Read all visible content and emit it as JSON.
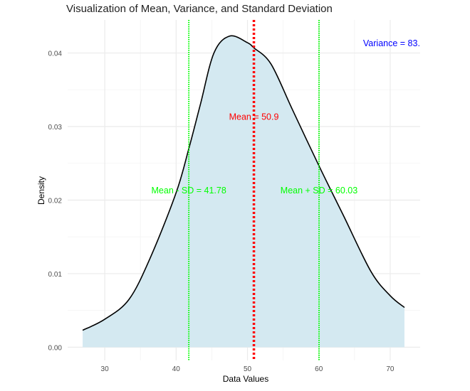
{
  "chart_data": {
    "type": "area",
    "title": "Visualization of Mean, Variance, and Standard Deviation",
    "xlabel": "Data Values",
    "ylabel": "Density",
    "xlim": [
      24.8,
      74.2
    ],
    "ylim": [
      -0.0018,
      0.0445
    ],
    "x_ticks": [
      30,
      40,
      50,
      60,
      70
    ],
    "x_tick_labels": [
      "30",
      "40",
      "50",
      "60",
      "70"
    ],
    "y_ticks": [
      0,
      0.01,
      0.02,
      0.03,
      0.04
    ],
    "y_tick_labels": [
      "0.00",
      "0.01",
      "0.02",
      "0.03",
      "0.04"
    ],
    "grid": true,
    "density": {
      "x": [
        26.9,
        30,
        33.4,
        36.4,
        40,
        41.78,
        43.4,
        45.3,
        47.5,
        50,
        50.9,
        53.3,
        56.3,
        60,
        63.4,
        67.3,
        70,
        72
      ],
      "y": [
        0.0023,
        0.0038,
        0.0065,
        0.0122,
        0.021,
        0.027,
        0.033,
        0.04,
        0.0423,
        0.0414,
        0.0407,
        0.0385,
        0.0323,
        0.0247,
        0.018,
        0.0103,
        0.007,
        0.0054
      ],
      "fill": "#d4e9f1",
      "line": "#000000"
    },
    "vlines": [
      {
        "name": "mean",
        "x": 50.9,
        "color": "#ff0000",
        "label": "Mean = 50.9",
        "label_y": 0.0313
      },
      {
        "name": "mean-minus-sd",
        "x": 41.78,
        "color": "#00ff00",
        "label": "Mean - SD = 41.78",
        "label_y": 0.0213
      },
      {
        "name": "mean-plus-sd",
        "x": 60.03,
        "color": "#00ff00",
        "label": "Mean + SD = 60.03",
        "label_y": 0.0213
      }
    ],
    "annotations": [
      {
        "text": "Variance = 83.",
        "color": "#0000ff",
        "x": 70.2,
        "y": 0.0413
      }
    ]
  }
}
